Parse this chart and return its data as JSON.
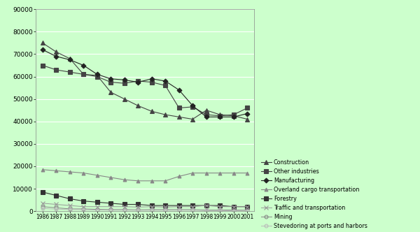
{
  "years": [
    1986,
    1987,
    1988,
    1989,
    1990,
    1991,
    1992,
    1993,
    1994,
    1995,
    1996,
    1997,
    1998,
    1999,
    2000,
    2001
  ],
  "series": {
    "Construction": [
      75000,
      71000,
      68000,
      61000,
      60500,
      53000,
      50000,
      47000,
      44500,
      43000,
      42000,
      41000,
      45000,
      43000,
      42500,
      41000
    ],
    "Other industries": [
      65000,
      63000,
      62000,
      61000,
      60000,
      57500,
      57000,
      58000,
      57500,
      56000,
      46000,
      46500,
      43000,
      42500,
      43000,
      46000
    ],
    "Manufacturing": [
      72000,
      69000,
      67500,
      65000,
      61000,
      59000,
      58500,
      57500,
      59000,
      58000,
      54000,
      47000,
      42000,
      42000,
      42000,
      43500
    ],
    "Overland cargo transportation": [
      18500,
      18000,
      17500,
      17000,
      16000,
      15000,
      14000,
      13500,
      13500,
      13500,
      15500,
      17000,
      17000,
      17000,
      17000,
      17000
    ],
    "Forestry": [
      8500,
      7000,
      5500,
      4500,
      4000,
      3500,
      3000,
      3000,
      2500,
      2500,
      2500,
      2500,
      2500,
      2500,
      2000,
      2000
    ],
    "Traffic and transportation": [
      3500,
      3000,
      2500,
      2000,
      2000,
      2000,
      2000,
      1800,
      2000,
      1800,
      2000,
      2000,
      2500,
      2000,
      2000,
      2000
    ],
    "Mining": [
      2000,
      1500,
      1000,
      1000,
      800,
      700,
      700,
      600,
      700,
      700,
      700,
      700,
      500,
      500,
      500,
      400
    ],
    "Stevedoring at ports and harbors": [
      1200,
      900,
      700,
      600,
      500,
      400,
      400,
      350,
      350,
      350,
      350,
      350,
      250,
      250,
      150,
      150
    ]
  },
  "markers": {
    "Construction": "^",
    "Other industries": "s",
    "Manufacturing": "D",
    "Overland cargo transportation": "^",
    "Forestry": "s",
    "Traffic and transportation": "x",
    "Mining": "o",
    "Stevedoring at ports and harbors": "o"
  },
  "colors": {
    "Construction": "#444444",
    "Other industries": "#444444",
    "Manufacturing": "#222222",
    "Overland cargo transportation": "#888888",
    "Forestry": "#333333",
    "Traffic and transportation": "#999999",
    "Mining": "#888888",
    "Stevedoring at ports and harbors": "#bbbbbb"
  },
  "marker_filled": {
    "Construction": true,
    "Other industries": true,
    "Manufacturing": true,
    "Overland cargo transportation": true,
    "Forestry": true,
    "Traffic and transportation": false,
    "Mining": false,
    "Stevedoring at ports and harbors": false
  },
  "ylim": [
    0,
    90000
  ],
  "yticks": [
    0,
    10000,
    20000,
    30000,
    40000,
    50000,
    60000,
    70000,
    80000,
    90000
  ],
  "background_color": "#ccffcc",
  "plot_bg_color": "#ccffcc",
  "grid_color": "#ffffff"
}
